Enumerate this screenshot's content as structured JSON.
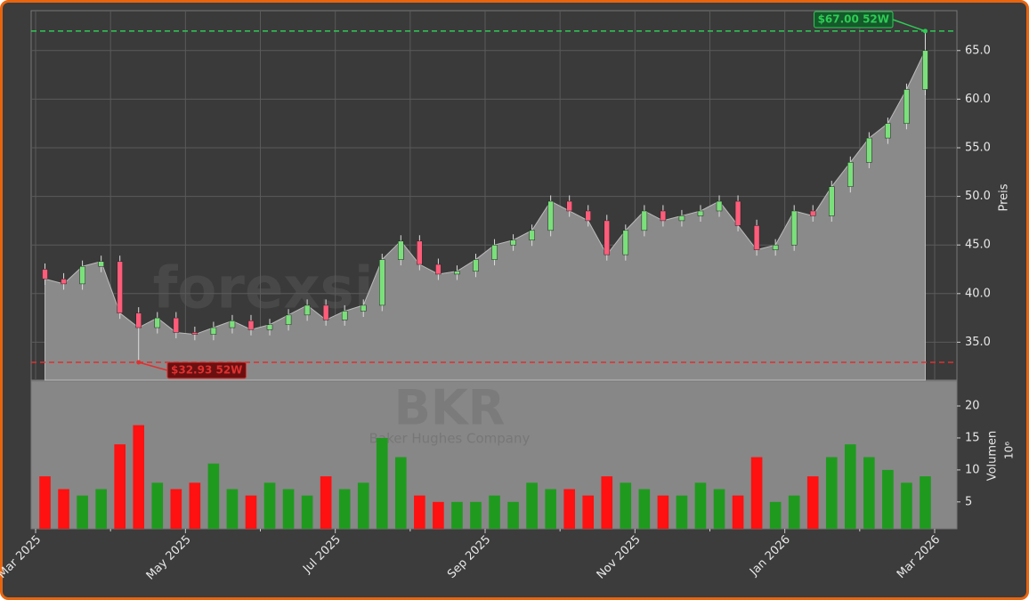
{
  "chart_data": [
    {
      "type": "candlestick",
      "watermark": "forexsignale.trade",
      "ylabel": "Preis",
      "x": [
        "2025-03",
        "2025-03",
        "2025-03",
        "2025-03",
        "2025-04",
        "2025-04",
        "2025-04",
        "2025-04",
        "2025-05",
        "2025-05",
        "2025-05",
        "2025-05",
        "2025-06",
        "2025-06",
        "2025-06",
        "2025-06",
        "2025-07",
        "2025-07",
        "2025-07",
        "2025-07",
        "2025-08",
        "2025-08",
        "2025-08",
        "2025-08",
        "2025-09",
        "2025-09",
        "2025-09",
        "2025-09",
        "2025-10",
        "2025-10",
        "2025-10",
        "2025-10",
        "2025-11",
        "2025-11",
        "2025-11",
        "2025-11",
        "2025-12",
        "2025-12",
        "2025-12",
        "2025-12",
        "2026-01",
        "2026-01",
        "2026-01",
        "2026-01",
        "2026-02",
        "2026-02",
        "2026-02",
        "2026-02"
      ],
      "open": [
        42.5,
        41.5,
        41.0,
        42.8,
        43.3,
        38.0,
        36.5,
        37.5,
        36.0,
        35.8,
        36.5,
        37.2,
        36.3,
        36.8,
        37.8,
        38.8,
        37.3,
        38.2,
        38.8,
        43.5,
        45.4,
        43.0,
        42.0,
        42.3,
        43.5,
        45.0,
        45.5,
        46.5,
        49.5,
        48.5,
        47.5,
        44.0,
        46.5,
        48.5,
        47.5,
        48.0,
        48.5,
        49.5,
        47.0,
        44.5,
        45.0,
        48.5,
        48.0,
        51.0,
        53.5,
        56.0,
        57.5,
        61.0
      ],
      "high": [
        43.1,
        42.1,
        43.4,
        43.9,
        43.9,
        38.6,
        38.1,
        38.1,
        36.6,
        37.1,
        37.8,
        37.8,
        37.4,
        38.4,
        39.4,
        39.4,
        38.8,
        39.4,
        44.1,
        46.0,
        46.0,
        43.6,
        42.9,
        44.1,
        45.6,
        46.1,
        47.1,
        50.1,
        50.1,
        49.1,
        48.1,
        47.1,
        49.1,
        49.1,
        48.6,
        49.1,
        50.1,
        50.1,
        47.6,
        45.6,
        49.1,
        49.1,
        51.6,
        54.1,
        56.6,
        58.1,
        61.6,
        67.0
      ],
      "low": [
        40.9,
        40.4,
        40.4,
        42.2,
        37.4,
        32.93,
        35.9,
        35.4,
        35.2,
        35.2,
        35.9,
        35.7,
        35.7,
        36.2,
        37.2,
        36.7,
        36.7,
        37.6,
        38.2,
        42.9,
        42.4,
        41.4,
        41.4,
        41.7,
        42.9,
        44.4,
        44.9,
        45.9,
        47.9,
        46.9,
        43.4,
        43.4,
        45.9,
        46.9,
        46.9,
        47.4,
        47.9,
        46.4,
        43.9,
        43.9,
        44.4,
        47.4,
        47.4,
        50.4,
        52.9,
        55.4,
        56.9,
        60.4
      ],
      "close": [
        41.5,
        41.0,
        42.8,
        43.3,
        38.0,
        36.5,
        37.5,
        36.0,
        35.8,
        36.5,
        37.2,
        36.3,
        36.8,
        37.8,
        38.8,
        37.3,
        38.2,
        38.8,
        43.5,
        45.4,
        43.0,
        42.0,
        42.3,
        43.5,
        45.0,
        45.5,
        46.5,
        49.5,
        48.5,
        47.5,
        44.0,
        46.5,
        48.5,
        47.5,
        48.0,
        48.5,
        49.5,
        47.0,
        44.5,
        45.0,
        48.5,
        48.0,
        51.0,
        53.5,
        56.0,
        57.5,
        61.0,
        65.0
      ],
      "up_color": "#7be07b",
      "down_color": "#ff5c7a",
      "area_color": "#8a8a8a",
      "high_line": {
        "value": 67.0,
        "label": "$67.00 52W",
        "color": "#2ecc55"
      },
      "low_line": {
        "value": 32.93,
        "label": "$32.93 52W",
        "color": "#e03030"
      },
      "ylim": [
        31.1,
        69.1
      ],
      "yticks": [
        {
          "value": 35,
          "label": "35.0"
        },
        {
          "value": 40,
          "label": "40.0"
        },
        {
          "value": 45,
          "label": "45.0"
        },
        {
          "value": 50,
          "label": "50.0"
        },
        {
          "value": 55,
          "label": "55.0"
        },
        {
          "value": 60,
          "label": "60.0"
        },
        {
          "value": 65,
          "label": "65.0"
        }
      ],
      "grid": true
    },
    {
      "type": "bar",
      "watermark_title": "BKR",
      "watermark_subtitle": "Baker Hughes Company",
      "ylabel": "Volumen",
      "ylabel_multiplier": "10⁶",
      "values": [
        9,
        7,
        6,
        7,
        14,
        17,
        8,
        7,
        8,
        11,
        7,
        6,
        8,
        7,
        6,
        9,
        7,
        8,
        15,
        12,
        6,
        5,
        5,
        5,
        6,
        5,
        8,
        7,
        7,
        6,
        9,
        8,
        7,
        6,
        6,
        8,
        7,
        6,
        12,
        5,
        6,
        9,
        12,
        14,
        12,
        10,
        8,
        9
      ],
      "up_color": "#1f9a1f",
      "down_color": "#ff1111",
      "ylim": [
        0.8,
        23.9
      ],
      "yticks": [
        5,
        10,
        15,
        20
      ],
      "xlim": [
        "2025-03",
        "2026-03"
      ],
      "xticks": [
        {
          "value": "2025-03",
          "label": "Mar 2025"
        },
        {
          "value": "2025-05",
          "label": "May 2025"
        },
        {
          "value": "2025-07",
          "label": "Jul 2025"
        },
        {
          "value": "2025-09",
          "label": "Sep 2025"
        },
        {
          "value": "2025-11",
          "label": "Nov 2025"
        },
        {
          "value": "2026-01",
          "label": "Jan 2026"
        },
        {
          "value": "2026-03",
          "label": "Mar 2026"
        }
      ],
      "xminorticks": [
        "2025-04",
        "2025-06",
        "2025-08",
        "2025-10",
        "2025-12",
        "2026-02"
      ]
    }
  ]
}
